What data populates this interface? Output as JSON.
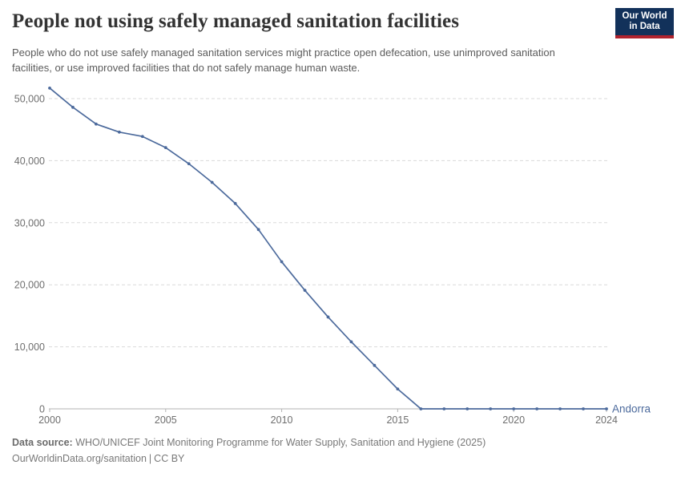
{
  "header": {
    "title": "People not using safely managed sanitation facilities",
    "subtitle": "People who do not use safely managed sanitation services might practice open defecation, use unimproved sanitation facilities, or use improved facilities that do not safely manage human waste.",
    "logo": {
      "line1": "Our World",
      "line2": "in Data",
      "bg_color": "#12315a",
      "accent_color": "#b0232e"
    }
  },
  "chart_data": {
    "type": "line",
    "title": "People not using safely managed sanitation facilities",
    "xlabel": "",
    "ylabel": "",
    "xlim": [
      2000,
      2024
    ],
    "ylim": [
      0,
      50000
    ],
    "grid": "horizontal-dashed",
    "legend_position": "end-of-line",
    "x_ticks": [
      2000,
      2005,
      2010,
      2015,
      2020,
      2024
    ],
    "y_ticks": [
      0,
      10000,
      20000,
      30000,
      40000,
      50000
    ],
    "y_tick_labels": [
      "0",
      "10,000",
      "20,000",
      "30,000",
      "40,000",
      "50,000"
    ],
    "end_label": "Andorra",
    "series": [
      {
        "name": "Andorra",
        "color": "#4c6a9c",
        "x": [
          2000,
          2001,
          2002,
          2003,
          2004,
          2005,
          2006,
          2007,
          2008,
          2009,
          2010,
          2011,
          2012,
          2013,
          2014,
          2015,
          2016,
          2017,
          2018,
          2019,
          2020,
          2021,
          2022,
          2023,
          2024
        ],
        "values": [
          51700,
          48600,
          45900,
          44600,
          43900,
          42100,
          39500,
          36500,
          33100,
          28900,
          23700,
          19100,
          14800,
          10800,
          7000,
          3200,
          0,
          0,
          0,
          0,
          0,
          0,
          0,
          0,
          0
        ]
      }
    ],
    "colors": {
      "gridline": "#dadada",
      "axis_line": "#b3b3b3",
      "tick_text": "#6e6e6e"
    }
  },
  "footer": {
    "datasource_label": "Data source:",
    "datasource_text": "WHO/UNICEF Joint Monitoring Programme for Water Supply, Sanitation and Hygiene (2025)",
    "url": "OurWorldinData.org/sanitation",
    "separator": "|",
    "license": "CC BY"
  }
}
